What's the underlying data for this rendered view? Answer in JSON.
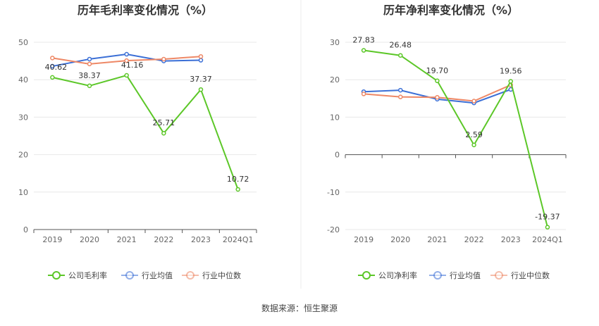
{
  "source_note": "数据来源：恒生聚源",
  "legend_labels": {
    "industry_avg": "行业均值",
    "industry_median": "行业中位数"
  },
  "chart_data": [
    {
      "type": "line",
      "title": "历年毛利率变化情况（%）",
      "categories": [
        "2019",
        "2020",
        "2021",
        "2022",
        "2023",
        "2024Q1"
      ],
      "ylim": [
        0,
        50
      ],
      "yticks": [
        0,
        10,
        20,
        30,
        40,
        50
      ],
      "grid": true,
      "legend_position": "bottom",
      "series": [
        {
          "name": "公司毛利率",
          "color": "#5cc728",
          "values": [
            40.62,
            38.37,
            41.16,
            25.71,
            37.37,
            10.72
          ],
          "labels": [
            "40.62",
            "38.37",
            "41.16",
            "25.71",
            "37.37",
            "10.72"
          ]
        },
        {
          "name": "行业均值",
          "color": "#3b6fd6",
          "values": [
            43.6,
            45.5,
            46.8,
            45.0,
            45.2,
            null
          ]
        },
        {
          "name": "行业中位数",
          "color": "#ee8866",
          "values": [
            45.8,
            44.2,
            45.1,
            45.5,
            46.2,
            null
          ]
        }
      ]
    },
    {
      "type": "line",
      "title": "历年净利率变化情况（%）",
      "categories": [
        "2019",
        "2020",
        "2021",
        "2022",
        "2023",
        "2024Q1"
      ],
      "ylim": [
        -20,
        30
      ],
      "yticks": [
        -20,
        -10,
        0,
        10,
        20,
        30
      ],
      "grid": true,
      "legend_position": "bottom",
      "series": [
        {
          "name": "公司净利率",
          "color": "#5cc728",
          "values": [
            27.83,
            26.48,
            19.7,
            2.59,
            19.56,
            -19.37
          ],
          "labels": [
            "27.83",
            "26.48",
            "19.70",
            "2.59",
            "19.56",
            "-19.37"
          ]
        },
        {
          "name": "行业均值",
          "color": "#3b6fd6",
          "values": [
            16.8,
            17.2,
            14.8,
            13.8,
            17.4,
            null
          ]
        },
        {
          "name": "行业中位数",
          "color": "#ee8866",
          "values": [
            16.2,
            15.4,
            15.3,
            14.3,
            18.6,
            null
          ]
        }
      ]
    }
  ]
}
